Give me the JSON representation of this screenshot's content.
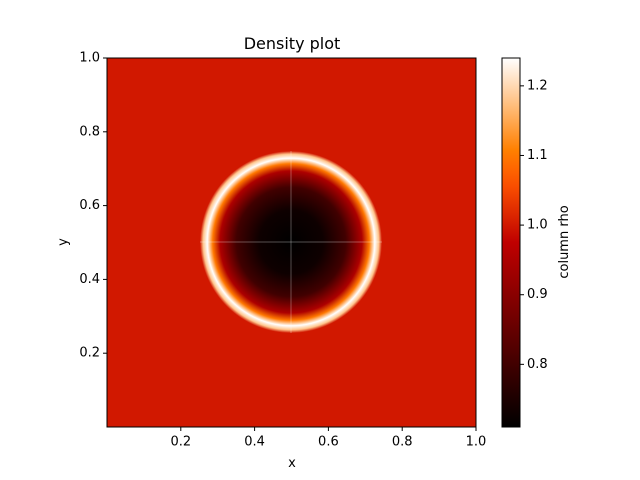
{
  "chart_data": {
    "type": "heatmap",
    "title": "Density plot",
    "xlabel": "x",
    "ylabel": "y",
    "xlim": [
      0,
      1
    ],
    "ylim": [
      0,
      1
    ],
    "xticks": [
      "0.2",
      "0.4",
      "0.6",
      "0.8",
      "1.0"
    ],
    "xtick_values": [
      0.2,
      0.4,
      0.6,
      0.8,
      1.0
    ],
    "yticks": [
      "0.2",
      "0.4",
      "0.6",
      "0.8",
      "1.0"
    ],
    "ytick_values": [
      0.2,
      0.4,
      0.6,
      0.8,
      1.0
    ],
    "colorbar": {
      "label": "column rho",
      "vmin": 0.71,
      "vmax": 1.24,
      "ticks": [
        "0.8",
        "0.9",
        "1.0",
        "1.1",
        "1.2"
      ],
      "tick_values": [
        0.8,
        0.9,
        1.0,
        1.1,
        1.2
      ],
      "colormap": "gist_heat"
    },
    "field": {
      "description_values": {
        "background": 1.0,
        "center_x": 0.5,
        "center_y": 0.5,
        "core_min": 0.71,
        "shell_max": 1.24,
        "shell_radius": 0.225,
        "shell_width": 0.02
      }
    },
    "grid": false,
    "legend": "none"
  }
}
